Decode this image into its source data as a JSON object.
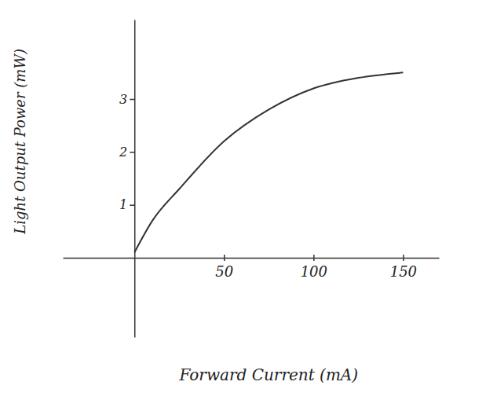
{
  "chart_data": {
    "type": "line",
    "x_label": "Forward Current (mA)",
    "y_label": "Light Output Power (mW)",
    "x": [
      0,
      10,
      25,
      50,
      75,
      100,
      125,
      150
    ],
    "values": [
      0.1,
      0.7,
      1.3,
      2.2,
      2.8,
      3.2,
      3.4,
      3.5
    ],
    "color": "#333333",
    "xlim": [
      -40,
      170
    ],
    "xticks": [
      50,
      100,
      150
    ],
    "ylim": [
      -1.5,
      4.5
    ],
    "yticks": [
      1,
      2,
      3
    ],
    "grid": false
  }
}
